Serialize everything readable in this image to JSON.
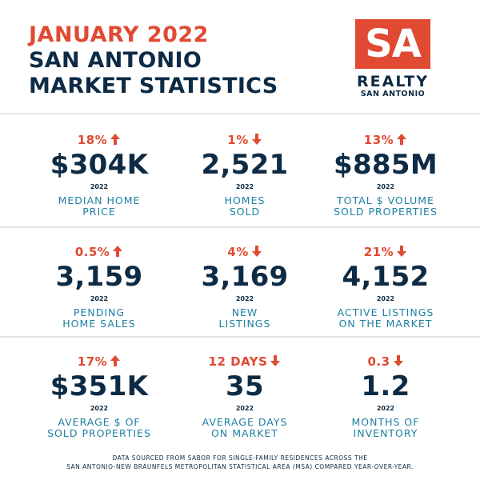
{
  "header": {
    "line1": "JANUARY 2022",
    "line2": "SAN ANTONIO",
    "line3": "MARKET STATISTICS"
  },
  "logo": {
    "mark": "SA",
    "name": "REALTY",
    "sub": "SAN ANTONIO"
  },
  "colors": {
    "accent_red": "#e04a32",
    "navy": "#0d2b45",
    "teal": "#1d7fa3"
  },
  "stats": [
    {
      "change": "18%",
      "direction": "up",
      "value": "$304K",
      "year": "2022",
      "label": "MEDIAN HOME\nPRICE"
    },
    {
      "change": "1%",
      "direction": "down",
      "value": "2,521",
      "year": "2022",
      "label": "HOMES\nSOLD"
    },
    {
      "change": "13%",
      "direction": "up",
      "value": "$885M",
      "year": "2022",
      "label": "TOTAL $ VOLUME\nSOLD PROPERTIES"
    },
    {
      "change": "0.5%",
      "direction": "up",
      "value": "3,159",
      "year": "2022",
      "label": "PENDING\nHOME SALES"
    },
    {
      "change": "4%",
      "direction": "down",
      "value": "3,169",
      "year": "2022",
      "label": "NEW\nLISTINGS"
    },
    {
      "change": "21%",
      "direction": "down",
      "value": "4,152",
      "year": "2022",
      "label": "ACTIVE LISTINGS\nON THE MARKET"
    },
    {
      "change": "17%",
      "direction": "up",
      "value": "$351K",
      "year": "2022",
      "label": "AVERAGE $ OF\nSOLD PROPERTIES"
    },
    {
      "change": "12 DAYS",
      "direction": "down",
      "value": "35",
      "year": "2022",
      "label": "AVERAGE DAYS\nON MARKET"
    },
    {
      "change": "0.3",
      "direction": "down",
      "value": "1.2",
      "year": "2022",
      "label": "MONTHS OF\nINVENTORY"
    }
  ],
  "footer": {
    "line1": "DATA SOURCED FROM SABOR FOR SINGLE-FAMILY RESIDENCES ACROSS THE",
    "line2": "SAN ANTONIO-NEW BRAUNFELS METROPOLITAN STATISTICAL AREA (MSA) COMPARED YEAR-OVER-YEAR."
  }
}
